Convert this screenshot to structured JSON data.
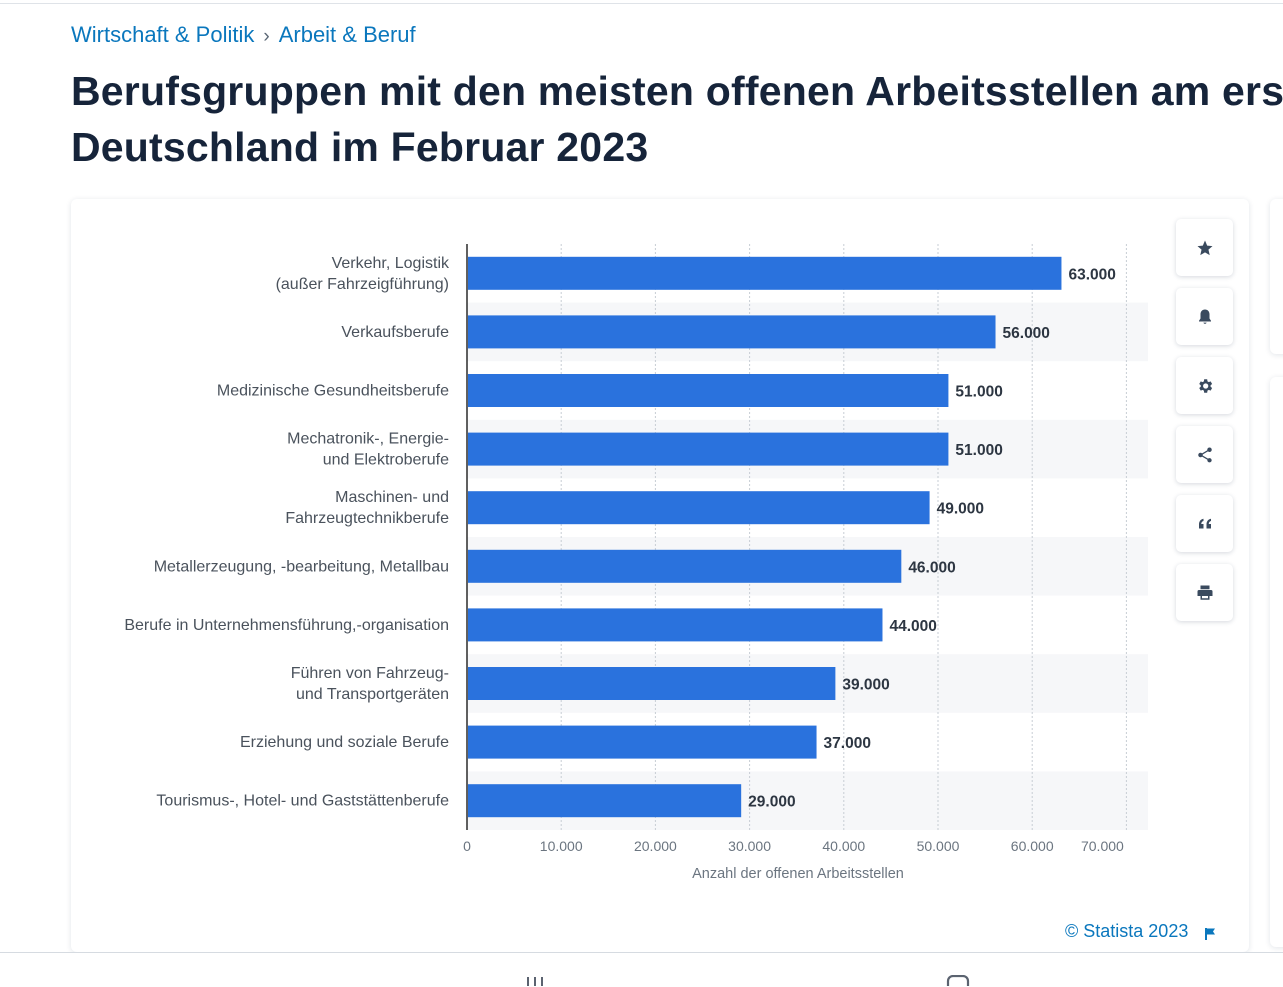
{
  "breadcrumb": {
    "items": [
      "Wirtschaft & Politik",
      "Arbeit & Beruf"
    ],
    "separator": "›"
  },
  "page": {
    "title_line1": "Berufsgruppen mit den meisten offenen Arbeitsstellen am ers",
    "title_line2": "Deutschland im Februar 2023"
  },
  "chart_data": {
    "type": "bar",
    "orientation": "horizontal",
    "categories": [
      [
        "Verkehr, Logistik",
        "(außer Fahrzeigführung)"
      ],
      [
        "Verkaufsberufe"
      ],
      [
        "Medizinische Gesundheitsberufe"
      ],
      [
        "Mechatronik-, Energie-",
        "und Elektroberufe"
      ],
      [
        "Maschinen- und",
        "Fahrzeugtechnikberufe"
      ],
      [
        "Metallerzeugung, -bearbeitung, Metallbau"
      ],
      [
        "Berufe in Unternehmensführung,-organisation"
      ],
      [
        "Führen von Fahrzeug-",
        "und Transportgeräten"
      ],
      [
        "Erziehung und soziale Berufe"
      ],
      [
        "Tourismus-, Hotel- und Gaststättenberufe"
      ]
    ],
    "values": [
      63000,
      56000,
      51000,
      51000,
      49000,
      46000,
      44000,
      39000,
      37000,
      29000
    ],
    "value_labels": [
      "63.000",
      "56.000",
      "51.000",
      "51.000",
      "49.000",
      "46.000",
      "44.000",
      "39.000",
      "37.000",
      "29.000"
    ],
    "xticks": [
      0,
      10000,
      20000,
      30000,
      40000,
      50000,
      60000,
      70000
    ],
    "xtick_labels": [
      "0",
      "10.000",
      "20.000",
      "30.000",
      "40.000",
      "50.000",
      "60.000",
      "70.000"
    ],
    "xlim": [
      0,
      70000
    ],
    "xlabel": "Anzahl der offenen Arbeitsstellen",
    "ylabel": "",
    "grid": "vertical-dotted",
    "bar_color": "#2a72dd"
  },
  "toolbar": {
    "buttons": [
      {
        "name": "favorite-button",
        "icon": "star-icon"
      },
      {
        "name": "notification-button",
        "icon": "bell-icon"
      },
      {
        "name": "settings-button",
        "icon": "gear-icon"
      },
      {
        "name": "share-button",
        "icon": "share-icon"
      },
      {
        "name": "cite-button",
        "icon": "quote-icon"
      },
      {
        "name": "print-button",
        "icon": "printer-icon"
      }
    ]
  },
  "footer": {
    "copyright": "© Statista 2023"
  },
  "colors": {
    "link": "#0a77bd",
    "title": "#16243a",
    "bar": "#2a72dd"
  }
}
